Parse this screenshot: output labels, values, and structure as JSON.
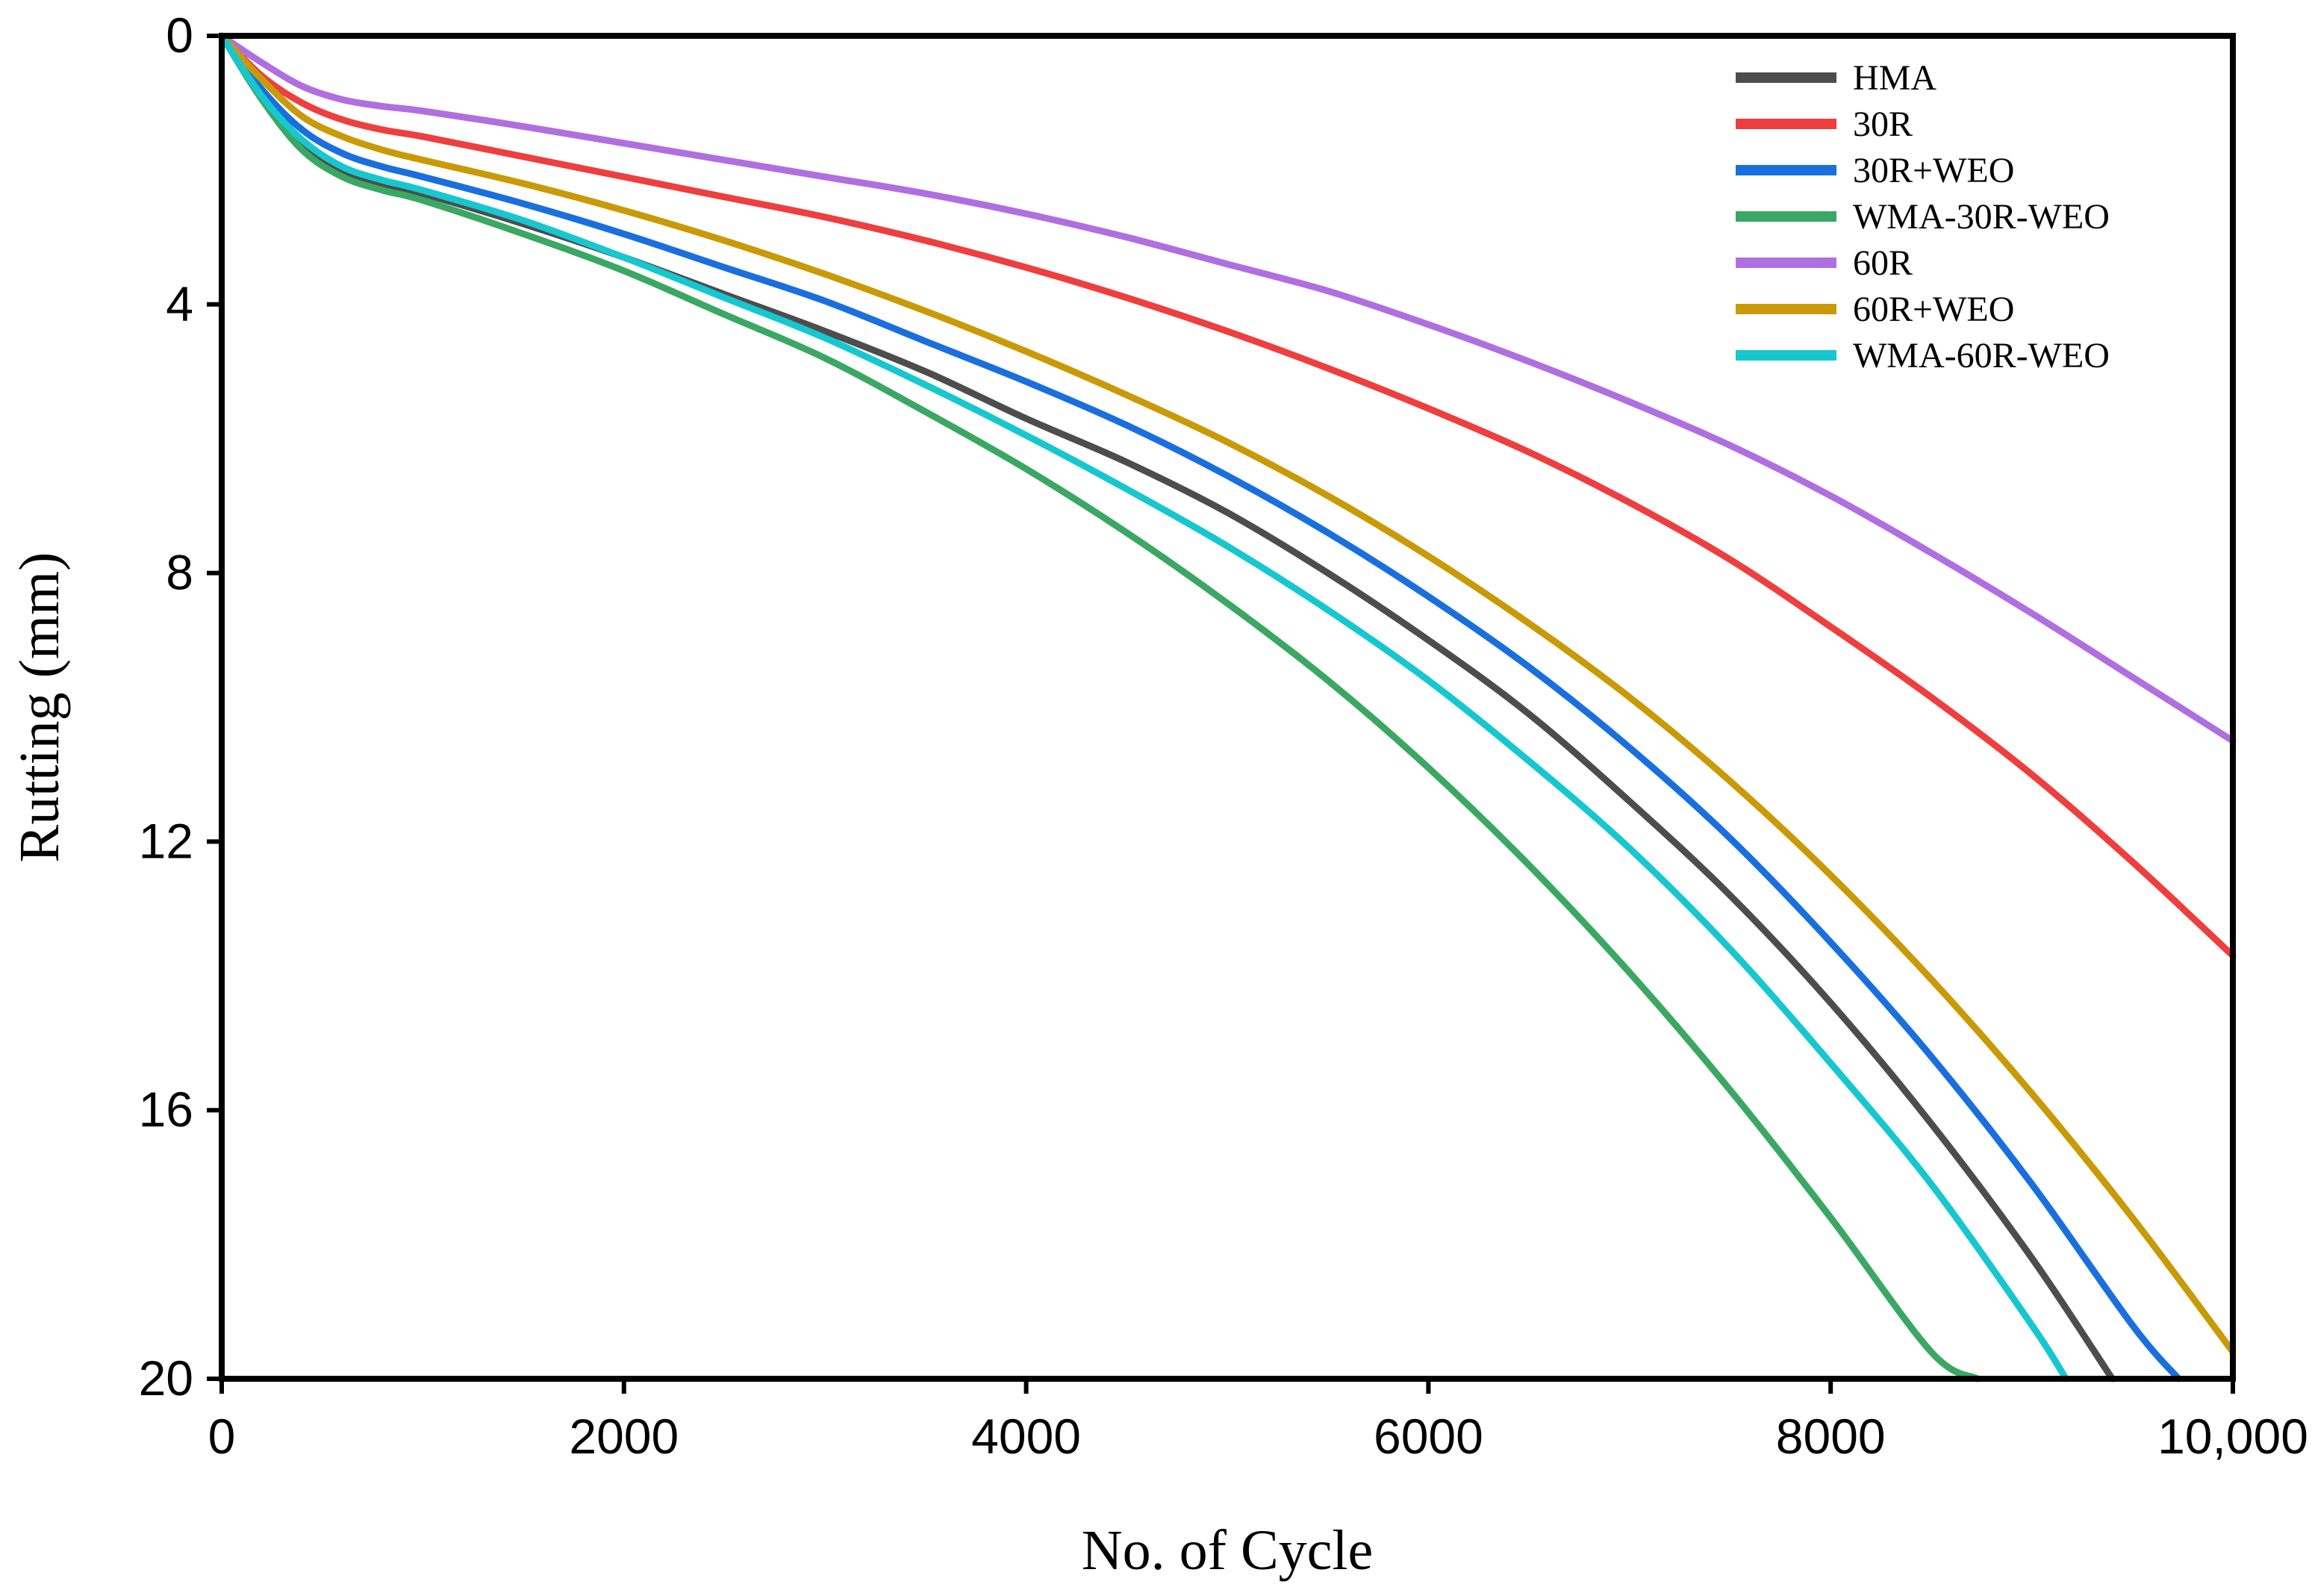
{
  "chart_data": {
    "type": "line",
    "title": "",
    "xlabel": "No. of Cycle",
    "ylabel": "Rutting (mm)",
    "xlim": [
      0,
      10000
    ],
    "ylim": [
      0,
      20
    ],
    "y_inverted": true,
    "x_ticks": [
      0,
      2000,
      4000,
      6000,
      8000,
      10000
    ],
    "x_tick_labels": [
      "0",
      "2000",
      "4000",
      "6000",
      "8000",
      "10,000"
    ],
    "y_ticks": [
      0,
      4,
      8,
      12,
      16,
      20
    ],
    "y_tick_labels": [
      "0",
      "4",
      "8",
      "12",
      "16",
      "20"
    ],
    "grid": false,
    "legend_position": "top-right",
    "series": [
      {
        "name": "HMA",
        "color": "#4d4d4d",
        "x": [
          0,
          200,
          400,
          600,
          800,
          1000,
          1500,
          2000,
          2500,
          3000,
          3500,
          4000,
          4500,
          5000,
          5500,
          6000,
          6500,
          7000,
          7500,
          8000,
          8500,
          9000,
          9400
        ],
        "y": [
          0,
          0.9,
          1.6,
          2.0,
          2.2,
          2.35,
          2.8,
          3.3,
          3.85,
          4.4,
          5.0,
          5.7,
          6.35,
          7.1,
          8.0,
          9.0,
          10.1,
          11.4,
          12.8,
          14.4,
          16.2,
          18.2,
          20.0
        ]
      },
      {
        "name": "30R",
        "color": "#ef3e3e",
        "x": [
          0,
          200,
          400,
          600,
          800,
          1000,
          1500,
          2000,
          2500,
          3000,
          3500,
          4000,
          4500,
          5000,
          5500,
          6000,
          6500,
          7000,
          7500,
          8000,
          8500,
          9000,
          9500,
          10000
        ],
        "y": [
          0,
          0.6,
          1.0,
          1.25,
          1.4,
          1.5,
          1.8,
          2.1,
          2.4,
          2.7,
          3.05,
          3.45,
          3.9,
          4.4,
          4.95,
          5.55,
          6.2,
          6.95,
          7.8,
          8.8,
          9.85,
          11.0,
          12.3,
          13.7
        ]
      },
      {
        "name": "30R+WEO",
        "color": "#1a6fde",
        "x": [
          0,
          200,
          400,
          600,
          800,
          1000,
          1500,
          2000,
          2500,
          3000,
          3500,
          4000,
          4500,
          5000,
          5500,
          6000,
          6500,
          7000,
          7500,
          8000,
          8500,
          9000,
          9500,
          9730
        ],
        "y": [
          0,
          0.8,
          1.4,
          1.75,
          1.95,
          2.1,
          2.5,
          2.95,
          3.45,
          3.95,
          4.55,
          5.15,
          5.8,
          6.55,
          7.4,
          8.35,
          9.4,
          10.6,
          11.95,
          13.5,
          15.2,
          17.1,
          19.2,
          20.0
        ]
      },
      {
        "name": "WMA-30R-WEO",
        "color": "#3aa862",
        "x": [
          0,
          200,
          400,
          600,
          800,
          1000,
          1500,
          2000,
          2500,
          3000,
          3500,
          4000,
          4500,
          5000,
          5500,
          6000,
          6500,
          7000,
          7500,
          8000,
          8500,
          8730
        ],
        "y": [
          0,
          0.95,
          1.7,
          2.1,
          2.3,
          2.45,
          2.95,
          3.5,
          4.15,
          4.8,
          5.6,
          6.45,
          7.4,
          8.45,
          9.6,
          10.9,
          12.35,
          13.95,
          15.7,
          17.6,
          19.6,
          20.0
        ]
      },
      {
        "name": "60R",
        "color": "#b06fe0",
        "x": [
          0,
          200,
          400,
          600,
          800,
          1000,
          1500,
          2000,
          2500,
          3000,
          3500,
          4000,
          4500,
          5000,
          5500,
          6000,
          6500,
          7000,
          7500,
          8000,
          8500,
          9000,
          9500,
          10000
        ],
        "y": [
          0,
          0.4,
          0.75,
          0.95,
          1.05,
          1.12,
          1.35,
          1.6,
          1.85,
          2.1,
          2.35,
          2.65,
          3.0,
          3.4,
          3.8,
          4.3,
          4.85,
          5.45,
          6.1,
          6.85,
          7.7,
          8.6,
          9.55,
          10.5
        ]
      },
      {
        "name": "60R+WEO",
        "color": "#c99a06",
        "x": [
          0,
          200,
          400,
          600,
          800,
          1000,
          1500,
          2000,
          2500,
          3000,
          3500,
          4000,
          4500,
          5000,
          5500,
          6000,
          6500,
          7000,
          7500,
          8000,
          8500,
          9000,
          9500,
          10000
        ],
        "y": [
          0,
          0.65,
          1.2,
          1.5,
          1.7,
          1.85,
          2.2,
          2.6,
          3.05,
          3.55,
          4.1,
          4.7,
          5.35,
          6.05,
          6.85,
          7.75,
          8.75,
          9.85,
          11.1,
          12.5,
          14.05,
          15.75,
          17.6,
          19.6
        ]
      },
      {
        "name": "WMA-60R-WEO",
        "color": "#17c7cf",
        "x": [
          0,
          200,
          400,
          600,
          800,
          1000,
          1500,
          2000,
          2500,
          3000,
          3500,
          4000,
          4500,
          5000,
          5500,
          6000,
          6500,
          7000,
          7500,
          8000,
          8500,
          9000,
          9170
        ],
        "y": [
          0,
          0.9,
          1.55,
          1.95,
          2.15,
          2.3,
          2.75,
          3.3,
          3.9,
          4.5,
          5.2,
          5.95,
          6.75,
          7.6,
          8.55,
          9.6,
          10.8,
          12.1,
          13.6,
          15.3,
          17.1,
          19.2,
          20.0
        ]
      }
    ]
  }
}
